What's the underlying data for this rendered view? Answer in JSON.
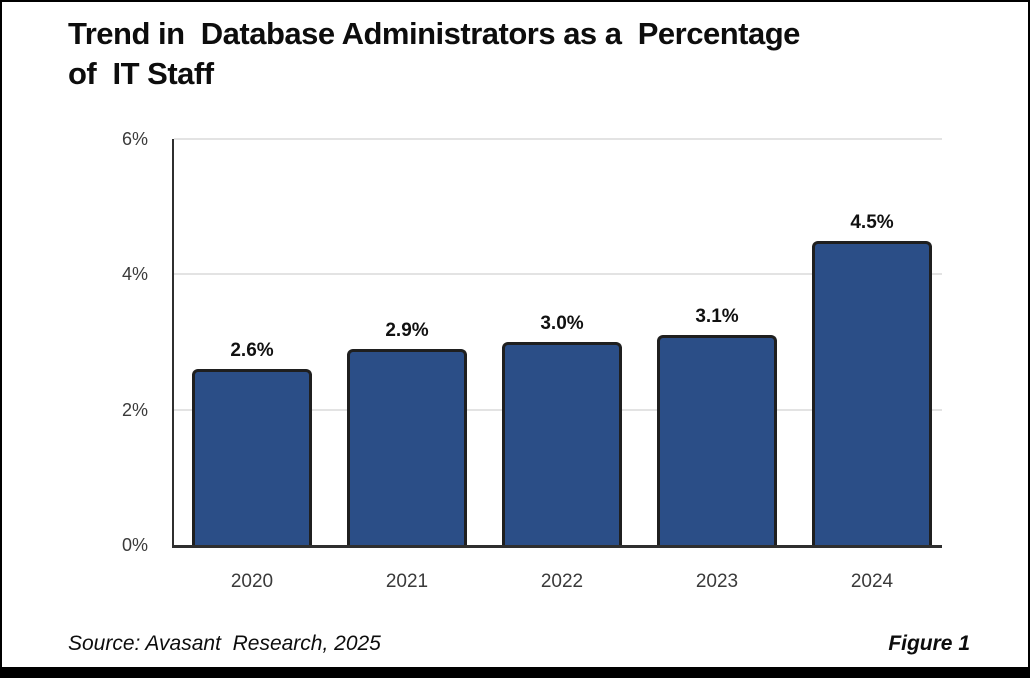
{
  "page": {
    "title_lines": [
      "Trend in  Database Administrators as a  Percentage",
      "of  IT Staff"
    ],
    "footer": {
      "source": "Source: Avasant  Research, 2025",
      "figure_label": "Figure 1"
    }
  },
  "chart_data": {
    "type": "bar",
    "title": "Trend in Database Administrators as a Percentage of IT Staff",
    "categories": [
      "2020",
      "2021",
      "2022",
      "2023",
      "2024"
    ],
    "values": [
      2.6,
      2.9,
      3.0,
      3.1,
      4.5
    ],
    "bar_labels": [
      "2.6%",
      "2.9%",
      "3.0%",
      "3.1%",
      "4.5%"
    ],
    "xlabel": "",
    "ylabel": "",
    "ylim": [
      0,
      6
    ],
    "yticks": [
      0,
      2,
      4,
      6
    ],
    "ytick_labels": [
      "0%",
      "2%",
      "4%",
      "6%"
    ],
    "grid": "horizontal",
    "legend": "none",
    "colors": {
      "bar_fill": "#2b4e87",
      "bar_border": "#1f1f1f",
      "gridline": "#e3e3e3",
      "axis": "#2f2f2f",
      "tick_text": "#3a3a3a",
      "value_text": "#111111"
    }
  }
}
